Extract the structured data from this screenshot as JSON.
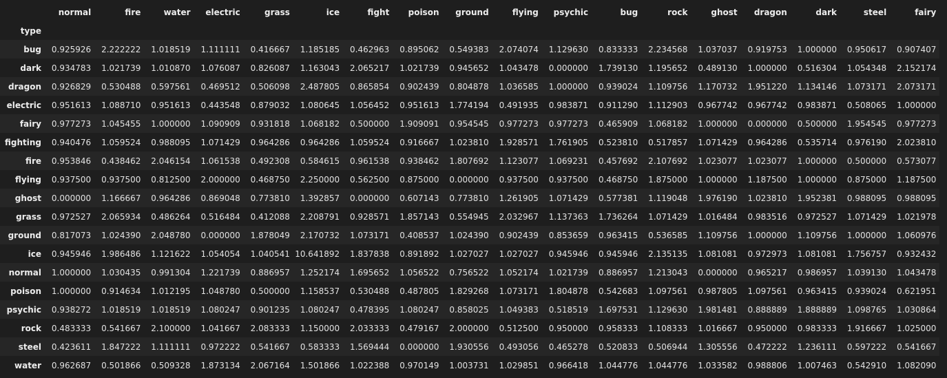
{
  "table": {
    "index_name": "type",
    "columns": [
      "normal",
      "fire",
      "water",
      "electric",
      "grass",
      "ice",
      "fight",
      "poison",
      "ground",
      "flying",
      "psychic",
      "bug",
      "rock",
      "ghost",
      "dragon",
      "dark",
      "steel",
      "fairy"
    ],
    "rows": [
      {
        "label": "bug",
        "values": [
          "0.925926",
          "2.222222",
          "1.018519",
          "1.111111",
          "0.416667",
          "1.185185",
          "0.462963",
          "0.895062",
          "0.549383",
          "2.074074",
          "1.129630",
          "0.833333",
          "2.234568",
          "1.037037",
          "0.919753",
          "1.000000",
          "0.950617",
          "0.907407"
        ]
      },
      {
        "label": "dark",
        "values": [
          "0.934783",
          "1.021739",
          "1.010870",
          "1.076087",
          "0.826087",
          "1.163043",
          "2.065217",
          "1.021739",
          "0.945652",
          "1.043478",
          "0.000000",
          "1.739130",
          "1.195652",
          "0.489130",
          "1.000000",
          "0.516304",
          "1.054348",
          "2.152174"
        ]
      },
      {
        "label": "dragon",
        "values": [
          "0.926829",
          "0.530488",
          "0.597561",
          "0.469512",
          "0.506098",
          "2.487805",
          "0.865854",
          "0.902439",
          "0.804878",
          "1.036585",
          "1.000000",
          "0.939024",
          "1.109756",
          "1.170732",
          "1.951220",
          "1.134146",
          "1.073171",
          "2.073171"
        ]
      },
      {
        "label": "electric",
        "values": [
          "0.951613",
          "1.088710",
          "0.951613",
          "0.443548",
          "0.879032",
          "1.080645",
          "1.056452",
          "0.951613",
          "1.774194",
          "0.491935",
          "0.983871",
          "0.911290",
          "1.112903",
          "0.967742",
          "0.967742",
          "0.983871",
          "0.508065",
          "1.000000"
        ]
      },
      {
        "label": "fairy",
        "values": [
          "0.977273",
          "1.045455",
          "1.000000",
          "1.090909",
          "0.931818",
          "1.068182",
          "0.500000",
          "1.909091",
          "0.954545",
          "0.977273",
          "0.977273",
          "0.465909",
          "1.068182",
          "1.000000",
          "0.000000",
          "0.500000",
          "1.954545",
          "0.977273"
        ]
      },
      {
        "label": "fighting",
        "values": [
          "0.940476",
          "1.059524",
          "0.988095",
          "1.071429",
          "0.964286",
          "0.964286",
          "1.059524",
          "0.916667",
          "1.023810",
          "1.928571",
          "1.761905",
          "0.523810",
          "0.517857",
          "1.071429",
          "0.964286",
          "0.535714",
          "0.976190",
          "2.023810"
        ]
      },
      {
        "label": "fire",
        "values": [
          "0.953846",
          "0.438462",
          "2.046154",
          "1.061538",
          "0.492308",
          "0.584615",
          "0.961538",
          "0.938462",
          "1.807692",
          "1.123077",
          "1.069231",
          "0.457692",
          "2.107692",
          "1.023077",
          "1.023077",
          "1.000000",
          "0.500000",
          "0.573077"
        ]
      },
      {
        "label": "flying",
        "values": [
          "0.937500",
          "0.937500",
          "0.812500",
          "2.000000",
          "0.468750",
          "2.250000",
          "0.562500",
          "0.875000",
          "0.000000",
          "0.937500",
          "0.937500",
          "0.468750",
          "1.875000",
          "1.000000",
          "1.187500",
          "1.000000",
          "0.875000",
          "1.187500"
        ]
      },
      {
        "label": "ghost",
        "values": [
          "0.000000",
          "1.166667",
          "0.964286",
          "0.869048",
          "0.773810",
          "1.392857",
          "0.000000",
          "0.607143",
          "0.773810",
          "1.261905",
          "1.071429",
          "0.577381",
          "1.119048",
          "1.976190",
          "1.023810",
          "1.952381",
          "0.988095",
          "0.988095"
        ]
      },
      {
        "label": "grass",
        "values": [
          "0.972527",
          "2.065934",
          "0.486264",
          "0.516484",
          "0.412088",
          "2.208791",
          "0.928571",
          "1.857143",
          "0.554945",
          "2.032967",
          "1.137363",
          "1.736264",
          "1.071429",
          "1.016484",
          "0.983516",
          "0.972527",
          "1.071429",
          "1.021978"
        ]
      },
      {
        "label": "ground",
        "values": [
          "0.817073",
          "1.024390",
          "2.048780",
          "0.000000",
          "1.878049",
          "2.170732",
          "1.073171",
          "0.408537",
          "1.024390",
          "0.902439",
          "0.853659",
          "0.963415",
          "0.536585",
          "1.109756",
          "1.000000",
          "1.109756",
          "1.000000",
          "1.060976"
        ]
      },
      {
        "label": "ice",
        "values": [
          "0.945946",
          "1.986486",
          "1.121622",
          "1.054054",
          "1.040541",
          "10.641892",
          "1.837838",
          "0.891892",
          "1.027027",
          "1.027027",
          "0.945946",
          "0.945946",
          "2.135135",
          "1.081081",
          "0.972973",
          "1.081081",
          "1.756757",
          "0.932432"
        ]
      },
      {
        "label": "normal",
        "values": [
          "1.000000",
          "1.030435",
          "0.991304",
          "1.221739",
          "0.886957",
          "1.252174",
          "1.695652",
          "1.056522",
          "0.756522",
          "1.052174",
          "1.021739",
          "0.886957",
          "1.213043",
          "0.000000",
          "0.965217",
          "0.986957",
          "1.039130",
          "1.043478"
        ]
      },
      {
        "label": "poison",
        "values": [
          "1.000000",
          "0.914634",
          "1.012195",
          "1.048780",
          "0.500000",
          "1.158537",
          "0.530488",
          "0.487805",
          "1.829268",
          "1.073171",
          "1.804878",
          "0.542683",
          "1.097561",
          "0.987805",
          "1.097561",
          "0.963415",
          "0.939024",
          "0.621951"
        ]
      },
      {
        "label": "psychic",
        "values": [
          "0.938272",
          "1.018519",
          "1.018519",
          "1.080247",
          "0.901235",
          "1.080247",
          "0.478395",
          "1.080247",
          "0.858025",
          "1.049383",
          "0.518519",
          "1.697531",
          "1.129630",
          "1.981481",
          "0.888889",
          "1.888889",
          "1.098765",
          "1.030864"
        ]
      },
      {
        "label": "rock",
        "values": [
          "0.483333",
          "0.541667",
          "2.100000",
          "1.041667",
          "2.083333",
          "1.150000",
          "2.033333",
          "0.479167",
          "2.000000",
          "0.512500",
          "0.950000",
          "0.958333",
          "1.108333",
          "1.016667",
          "0.950000",
          "0.983333",
          "1.916667",
          "1.025000"
        ]
      },
      {
        "label": "steel",
        "values": [
          "0.423611",
          "1.847222",
          "1.111111",
          "0.972222",
          "0.541667",
          "0.583333",
          "1.569444",
          "0.000000",
          "1.930556",
          "0.493056",
          "0.465278",
          "0.520833",
          "0.506944",
          "1.305556",
          "0.472222",
          "1.236111",
          "0.597222",
          "0.541667"
        ]
      },
      {
        "label": "water",
        "values": [
          "0.962687",
          "0.501866",
          "0.509328",
          "1.873134",
          "2.067164",
          "1.501866",
          "1.022388",
          "0.970149",
          "1.003731",
          "1.029851",
          "0.966418",
          "1.044776",
          "1.044776",
          "1.033582",
          "0.988806",
          "1.007463",
          "0.542910",
          "1.082090"
        ]
      }
    ]
  }
}
